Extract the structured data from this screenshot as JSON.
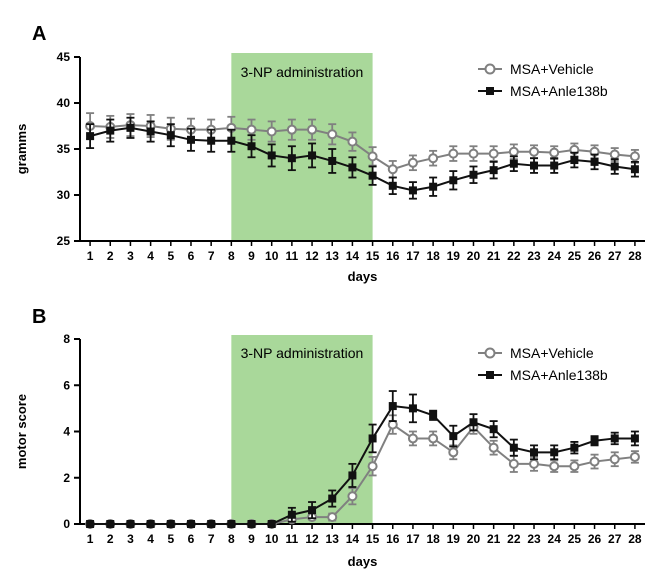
{
  "frame_color": "#b0b0b0",
  "colors": {
    "vehicle": "#808080",
    "anle": "#111111",
    "band": "#a9d89a"
  },
  "chart_data": [
    {
      "type": "line",
      "panel": "A",
      "band_label": "3-NP administration",
      "band_x": [
        8,
        15
      ],
      "xlabel": "days",
      "ylabel": "gramms",
      "xlim": [
        0.5,
        28.5
      ],
      "ylim": [
        25,
        45
      ],
      "yticks": [
        25,
        30,
        35,
        40,
        45
      ],
      "x": [
        1,
        2,
        3,
        4,
        5,
        6,
        7,
        8,
        9,
        10,
        11,
        12,
        13,
        14,
        15,
        16,
        17,
        18,
        19,
        20,
        21,
        22,
        23,
        24,
        25,
        26,
        27,
        28
      ],
      "legend_position": "top-right",
      "series": [
        {
          "name": "MSA+Vehicle",
          "marker": "circle",
          "values": [
            37.5,
            37.4,
            37.6,
            37.5,
            37.2,
            37.1,
            37.1,
            37.3,
            37.1,
            36.9,
            37.1,
            37.1,
            36.6,
            35.8,
            34.2,
            32.8,
            33.5,
            34.0,
            34.5,
            34.5,
            34.5,
            34.7,
            34.7,
            34.6,
            34.9,
            34.7,
            34.4,
            34.2
          ],
          "errors": [
            1.4,
            1.2,
            1.2,
            1.2,
            1.2,
            1.2,
            1.1,
            1.2,
            1.1,
            1.1,
            1.1,
            1.1,
            1.1,
            1.0,
            1.0,
            0.9,
            0.8,
            0.8,
            0.8,
            0.8,
            0.8,
            0.8,
            0.7,
            0.7,
            0.7,
            0.7,
            0.7,
            0.7
          ]
        },
        {
          "name": "MSA+Anle138b",
          "marker": "square",
          "values": [
            36.4,
            37.0,
            37.3,
            36.9,
            36.5,
            36.0,
            35.9,
            35.9,
            35.3,
            34.3,
            34.0,
            34.3,
            33.7,
            33.0,
            32.1,
            31.0,
            30.5,
            30.9,
            31.6,
            32.2,
            32.7,
            33.4,
            33.2,
            33.2,
            33.8,
            33.6,
            33.1,
            32.8
          ],
          "errors": [
            1.3,
            1.2,
            1.1,
            1.1,
            1.2,
            1.2,
            1.2,
            1.2,
            1.2,
            1.2,
            1.3,
            1.3,
            1.3,
            1.1,
            1.0,
            0.9,
            0.9,
            1.0,
            1.0,
            0.9,
            0.9,
            0.8,
            0.8,
            0.8,
            0.8,
            0.8,
            0.8,
            0.8
          ]
        }
      ]
    },
    {
      "type": "line",
      "panel": "B",
      "band_label": "3-NP administration",
      "band_x": [
        8,
        15
      ],
      "xlabel": "days",
      "ylabel": "motor score",
      "xlim": [
        0.5,
        28.5
      ],
      "ylim": [
        0,
        8
      ],
      "yticks": [
        0,
        2,
        4,
        6,
        8
      ],
      "x": [
        1,
        2,
        3,
        4,
        5,
        6,
        7,
        8,
        9,
        10,
        11,
        12,
        13,
        14,
        15,
        16,
        17,
        18,
        19,
        20,
        21,
        22,
        23,
        24,
        25,
        26,
        27,
        28
      ],
      "legend_position": "top-right",
      "series": [
        {
          "name": "MSA+Vehicle",
          "marker": "circle",
          "values": [
            0,
            0,
            0,
            0,
            0,
            0,
            0,
            0,
            0,
            0,
            0.2,
            0.3,
            0.3,
            1.2,
            2.5,
            4.3,
            3.7,
            3.7,
            3.1,
            4.2,
            3.3,
            2.6,
            2.6,
            2.5,
            2.5,
            2.7,
            2.8,
            2.9
          ],
          "errors": [
            0,
            0,
            0,
            0,
            0,
            0,
            0,
            0,
            0,
            0,
            0.1,
            0.1,
            0.15,
            0.35,
            0.4,
            0.4,
            0.3,
            0.3,
            0.3,
            0.3,
            0.3,
            0.35,
            0.3,
            0.25,
            0.25,
            0.3,
            0.3,
            0.25
          ]
        },
        {
          "name": "MSA+Anle138b",
          "marker": "square",
          "values": [
            0,
            0,
            0,
            0,
            0,
            0,
            0,
            0,
            0,
            0,
            0.4,
            0.6,
            1.1,
            2.1,
            3.7,
            5.1,
            5.0,
            4.7,
            3.8,
            4.4,
            4.1,
            3.3,
            3.1,
            3.1,
            3.3,
            3.6,
            3.7,
            3.7
          ],
          "errors": [
            0,
            0,
            0,
            0,
            0,
            0,
            0,
            0,
            0,
            0,
            0.3,
            0.35,
            0.35,
            0.5,
            0.6,
            0.65,
            0.6,
            0.2,
            0.45,
            0.35,
            0.35,
            0.35,
            0.3,
            0.3,
            0.25,
            0.2,
            0.25,
            0.3
          ]
        }
      ]
    }
  ]
}
